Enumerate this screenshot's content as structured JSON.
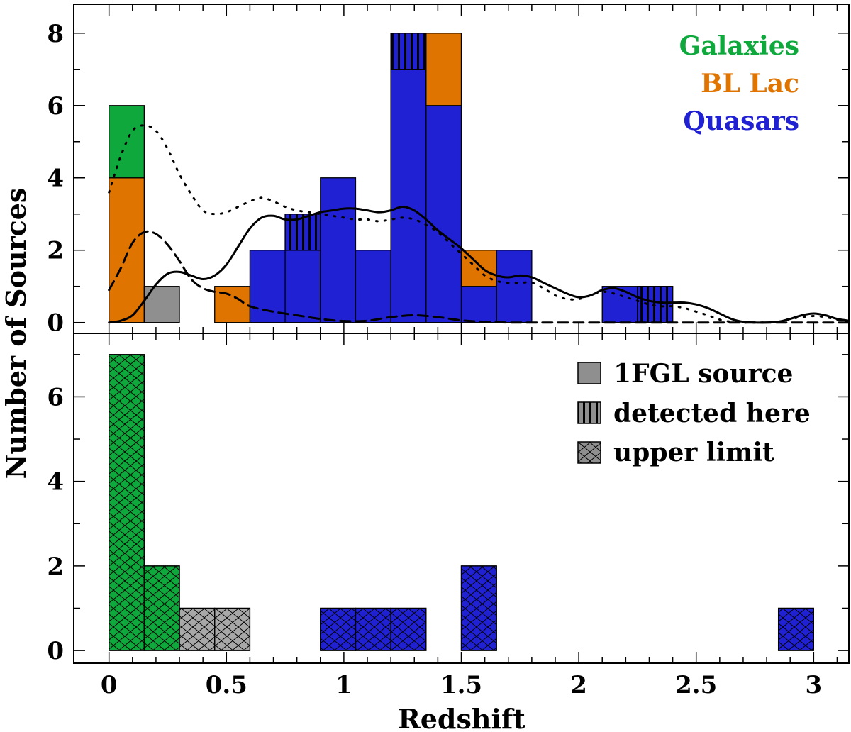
{
  "colors": {
    "galaxies": "#0fa83c",
    "bllac": "#e07400",
    "quasars": "#2121d4",
    "source_1fgl": "#8f8f8f",
    "upper_gray": "#a8a8a8"
  },
  "chart_data": [
    {
      "panel": "top",
      "type": "bar",
      "stacked": true,
      "bin_width": 0.15,
      "xlim": [
        -0.15,
        3.15
      ],
      "ylim": [
        -0.3,
        8.8
      ],
      "ylabel": "Number of Sources",
      "yticks": [
        0,
        2,
        4,
        6,
        8
      ],
      "class_legend": [
        {
          "key": "galaxies",
          "label": "Galaxies"
        },
        {
          "key": "bllac",
          "label": "BL Lac"
        },
        {
          "key": "quasars",
          "label": "Quasars"
        }
      ],
      "bars": [
        {
          "x": 0.0,
          "segments": [
            {
              "class": "bllac",
              "count": 4
            },
            {
              "class": "galaxies",
              "count": 2
            }
          ]
        },
        {
          "x": 0.15,
          "segments": [
            {
              "class": "source_1fgl",
              "count": 1
            }
          ]
        },
        {
          "x": 0.45,
          "segments": [
            {
              "class": "bllac",
              "count": 1
            }
          ]
        },
        {
          "x": 0.6,
          "segments": [
            {
              "class": "quasars",
              "count": 2
            }
          ]
        },
        {
          "x": 0.75,
          "segments": [
            {
              "class": "quasars",
              "count": 2
            },
            {
              "class": "quasars",
              "count": 1,
              "detected": true
            }
          ]
        },
        {
          "x": 0.9,
          "segments": [
            {
              "class": "quasars",
              "count": 4
            }
          ]
        },
        {
          "x": 1.05,
          "segments": [
            {
              "class": "quasars",
              "count": 2
            }
          ]
        },
        {
          "x": 1.2,
          "segments": [
            {
              "class": "quasars",
              "count": 7
            },
            {
              "class": "quasars",
              "count": 1,
              "detected": true
            }
          ]
        },
        {
          "x": 1.35,
          "segments": [
            {
              "class": "quasars",
              "count": 6
            },
            {
              "class": "bllac",
              "count": 2
            }
          ]
        },
        {
          "x": 1.5,
          "segments": [
            {
              "class": "quasars",
              "count": 1
            },
            {
              "class": "bllac",
              "count": 1
            }
          ]
        },
        {
          "x": 1.65,
          "segments": [
            {
              "class": "quasars",
              "count": 2
            }
          ]
        },
        {
          "x": 2.1,
          "segments": [
            {
              "class": "quasars",
              "count": 1
            }
          ]
        },
        {
          "x": 2.25,
          "segments": [
            {
              "class": "quasars",
              "count": 1,
              "detected": true
            }
          ]
        }
      ],
      "curves": [
        {
          "name": "quasar density",
          "style": "solid",
          "x": [
            0.0,
            0.05,
            0.1,
            0.15,
            0.2,
            0.25,
            0.3,
            0.35,
            0.4,
            0.45,
            0.5,
            0.55,
            0.6,
            0.65,
            0.7,
            0.75,
            0.8,
            0.85,
            0.9,
            0.95,
            1.0,
            1.05,
            1.1,
            1.15,
            1.2,
            1.25,
            1.3,
            1.35,
            1.4,
            1.45,
            1.5,
            1.55,
            1.6,
            1.65,
            1.7,
            1.75,
            1.8,
            1.85,
            1.9,
            1.95,
            2.0,
            2.05,
            2.1,
            2.15,
            2.2,
            2.25,
            2.3,
            2.35,
            2.4,
            2.45,
            2.5,
            2.55,
            2.6,
            2.65,
            2.7,
            2.75,
            2.8,
            2.85,
            2.9,
            2.95,
            3.0,
            3.05,
            3.1,
            3.15
          ],
          "y": [
            0.0,
            0.05,
            0.2,
            0.6,
            1.05,
            1.35,
            1.4,
            1.3,
            1.2,
            1.3,
            1.6,
            2.1,
            2.6,
            2.9,
            2.95,
            2.85,
            2.85,
            2.95,
            3.05,
            3.1,
            3.15,
            3.15,
            3.1,
            3.05,
            3.1,
            3.2,
            3.1,
            2.85,
            2.55,
            2.3,
            2.05,
            1.75,
            1.45,
            1.3,
            1.25,
            1.3,
            1.25,
            1.1,
            0.95,
            0.8,
            0.7,
            0.75,
            0.9,
            0.95,
            0.85,
            0.7,
            0.6,
            0.55,
            0.55,
            0.55,
            0.5,
            0.4,
            0.25,
            0.1,
            0.02,
            0.0,
            0.0,
            0.02,
            0.1,
            0.2,
            0.25,
            0.2,
            0.1,
            0.05
          ]
        },
        {
          "name": "BL Lac density",
          "style": "dashed",
          "x": [
            0.0,
            0.05,
            0.1,
            0.15,
            0.2,
            0.25,
            0.3,
            0.35,
            0.4,
            0.45,
            0.5,
            0.55,
            0.6,
            0.7,
            0.8,
            0.9,
            1.0,
            1.1,
            1.2,
            1.3,
            1.4,
            1.5,
            1.6,
            1.7,
            1.8,
            2.0,
            2.2,
            2.4,
            2.6,
            2.8,
            3.0,
            3.15
          ],
          "y": [
            0.9,
            1.5,
            2.2,
            2.5,
            2.45,
            2.15,
            1.7,
            1.2,
            0.95,
            0.85,
            0.8,
            0.65,
            0.45,
            0.3,
            0.2,
            0.1,
            0.04,
            0.05,
            0.15,
            0.2,
            0.15,
            0.06,
            0.02,
            0.0,
            0.0,
            0.0,
            0.0,
            0.0,
            0.0,
            0.0,
            0.0,
            0.0
          ]
        },
        {
          "name": "all sources density",
          "style": "dotted",
          "x": [
            0.0,
            0.05,
            0.1,
            0.15,
            0.2,
            0.25,
            0.3,
            0.35,
            0.4,
            0.45,
            0.5,
            0.55,
            0.6,
            0.65,
            0.7,
            0.75,
            0.8,
            0.85,
            0.9,
            0.95,
            1.0,
            1.05,
            1.1,
            1.15,
            1.2,
            1.25,
            1.3,
            1.35,
            1.4,
            1.45,
            1.5,
            1.55,
            1.6,
            1.65,
            1.7,
            1.75,
            1.8,
            1.85,
            1.9,
            1.95,
            2.0,
            2.05,
            2.1,
            2.15,
            2.2,
            2.25,
            2.3,
            2.35,
            2.4,
            2.45,
            2.5,
            2.55,
            2.6,
            2.65,
            2.7,
            2.75,
            2.8,
            2.85,
            2.9,
            2.95,
            3.0,
            3.05,
            3.1,
            3.15
          ],
          "y": [
            3.6,
            4.6,
            5.3,
            5.45,
            5.3,
            4.8,
            4.1,
            3.55,
            3.1,
            3.0,
            3.05,
            3.2,
            3.35,
            3.45,
            3.35,
            3.2,
            3.1,
            3.05,
            3.0,
            2.95,
            2.9,
            2.85,
            2.85,
            2.8,
            2.85,
            2.9,
            2.85,
            2.7,
            2.5,
            2.2,
            1.9,
            1.6,
            1.3,
            1.15,
            1.1,
            1.1,
            1.1,
            0.95,
            0.75,
            0.65,
            0.65,
            0.75,
            0.85,
            0.8,
            0.7,
            0.6,
            0.5,
            0.45,
            0.45,
            0.4,
            0.3,
            0.2,
            0.08,
            0.02,
            0.0,
            0.0,
            0.0,
            0.02,
            0.1,
            0.15,
            0.18,
            0.15,
            0.08,
            0.03
          ]
        }
      ]
    },
    {
      "panel": "bottom",
      "type": "bar",
      "stacked": true,
      "bin_width": 0.15,
      "xlim": [
        -0.15,
        3.15
      ],
      "ylim": [
        -0.3,
        7.5
      ],
      "xlabel": "Redshift",
      "xticks": [
        0,
        0.5,
        1,
        1.5,
        2,
        2.5,
        3
      ],
      "xtick_labels": [
        "0",
        "0.5",
        "1",
        "1.5",
        "2",
        "2.5",
        "3"
      ],
      "yticks": [
        0,
        2,
        4,
        6
      ],
      "legend": [
        {
          "label": "1FGL source",
          "pattern": "solid"
        },
        {
          "label": "detected here",
          "pattern": "vertical"
        },
        {
          "label": "upper limit",
          "pattern": "crosshatch"
        }
      ],
      "bars": [
        {
          "x": 0.0,
          "segments": [
            {
              "class": "galaxies",
              "count": 7,
              "upper": true
            }
          ]
        },
        {
          "x": 0.15,
          "segments": [
            {
              "class": "galaxies",
              "count": 2,
              "upper": true
            }
          ]
        },
        {
          "x": 0.3,
          "segments": [
            {
              "class": "upper_gray",
              "count": 1,
              "upper": true
            }
          ]
        },
        {
          "x": 0.45,
          "segments": [
            {
              "class": "upper_gray",
              "count": 1,
              "upper": true
            }
          ]
        },
        {
          "x": 0.9,
          "segments": [
            {
              "class": "quasars",
              "count": 1,
              "upper": true
            }
          ]
        },
        {
          "x": 1.05,
          "segments": [
            {
              "class": "quasars",
              "count": 1,
              "upper": true
            }
          ]
        },
        {
          "x": 1.2,
          "segments": [
            {
              "class": "quasars",
              "count": 1,
              "upper": true
            }
          ]
        },
        {
          "x": 1.5,
          "segments": [
            {
              "class": "quasars",
              "count": 2,
              "upper": true
            }
          ]
        },
        {
          "x": 2.85,
          "segments": [
            {
              "class": "quasars",
              "count": 1,
              "upper": true
            }
          ]
        }
      ]
    }
  ]
}
